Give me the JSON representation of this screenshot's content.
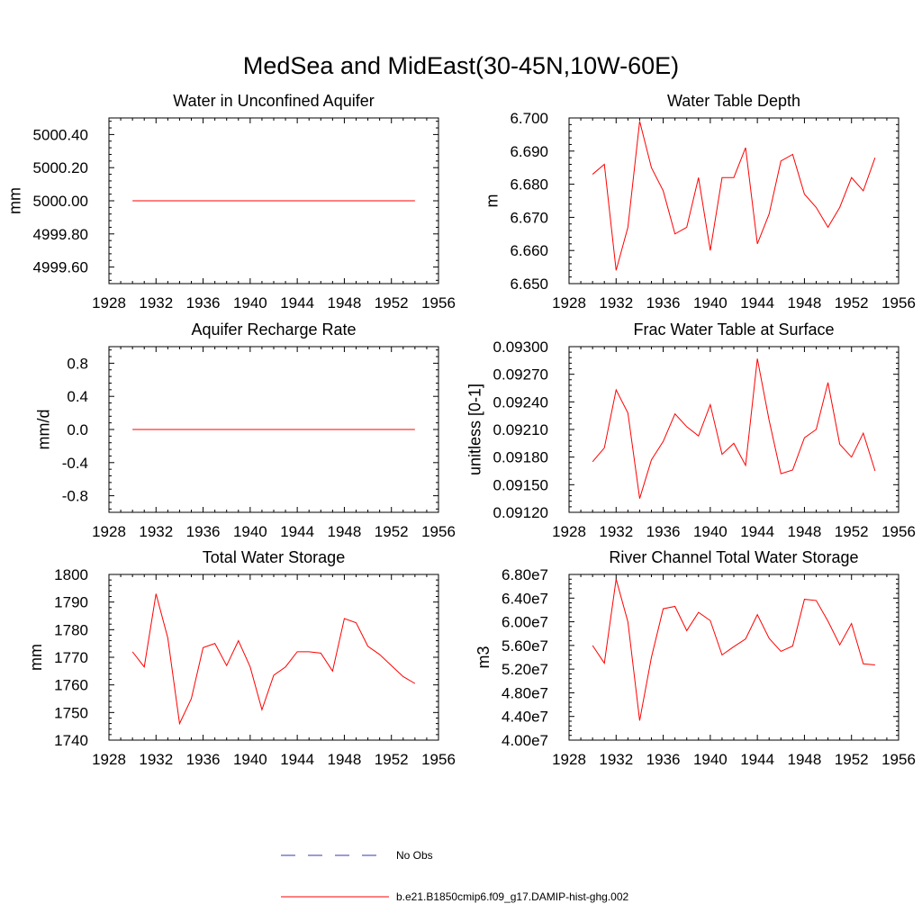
{
  "figure": {
    "title": "MedSea and MidEast(30-45N,10W-60E)"
  },
  "colors": {
    "model_line": "#ff0000",
    "obs_line": "#3a3aa8",
    "axis": "#000000",
    "background": "#ffffff"
  },
  "legend": {
    "position": "bottom-center",
    "entries": [
      {
        "label": "No Obs",
        "color": "#3a3aa8",
        "style": "dashed"
      },
      {
        "label": "b.e21.B1850cmip6.f09_g17.DAMIP-hist-ghg.002",
        "color": "#ff0000",
        "style": "solid"
      }
    ]
  },
  "chart_data": [
    {
      "type": "line",
      "title": "Water in Unconfined Aquifer",
      "xlabel": "",
      "ylabel": "mm",
      "xlim": [
        1928,
        1956
      ],
      "ylim": [
        4999.5,
        5000.5
      ],
      "xticks": [
        1928,
        1932,
        1936,
        1940,
        1944,
        1948,
        1952,
        1956
      ],
      "xtick_labels": [
        "1928",
        "1932",
        "1936",
        "1940",
        "1944",
        "1948",
        "1952",
        "1956"
      ],
      "yticks": [
        4999.6,
        4999.8,
        5000.0,
        5000.2,
        5000.4
      ],
      "ytick_labels": [
        "4999.60",
        "4999.80",
        "5000.00",
        "5000.20",
        "5000.40"
      ],
      "x": [
        1930,
        1931,
        1932,
        1933,
        1934,
        1935,
        1936,
        1937,
        1938,
        1939,
        1940,
        1941,
        1942,
        1943,
        1944,
        1945,
        1946,
        1947,
        1948,
        1949,
        1950,
        1951,
        1952,
        1953,
        1954
      ],
      "series": [
        {
          "values": [
            5000,
            5000,
            5000,
            5000,
            5000,
            5000,
            5000,
            5000,
            5000,
            5000,
            5000,
            5000,
            5000,
            5000,
            5000,
            5000,
            5000,
            5000,
            5000,
            5000,
            5000,
            5000,
            5000,
            5000,
            5000
          ],
          "color": "#ff0000"
        }
      ]
    },
    {
      "type": "line",
      "title": "Water Table Depth",
      "xlabel": "",
      "ylabel": "m",
      "xlim": [
        1928,
        1956
      ],
      "ylim": [
        6.65,
        6.7
      ],
      "xticks": [
        1928,
        1932,
        1936,
        1940,
        1944,
        1948,
        1952,
        1956
      ],
      "xtick_labels": [
        "1928",
        "1932",
        "1936",
        "1940",
        "1944",
        "1948",
        "1952",
        "1956"
      ],
      "yticks": [
        6.65,
        6.66,
        6.67,
        6.68,
        6.69,
        6.7
      ],
      "ytick_labels": [
        "6.650",
        "6.660",
        "6.670",
        "6.680",
        "6.690",
        "6.700"
      ],
      "x": [
        1930,
        1931,
        1932,
        1933,
        1934,
        1935,
        1936,
        1937,
        1938,
        1939,
        1940,
        1941,
        1942,
        1943,
        1944,
        1945,
        1946,
        1947,
        1948,
        1949,
        1950,
        1951,
        1952,
        1953,
        1954
      ],
      "series": [
        {
          "values": [
            6.683,
            6.686,
            6.654,
            6.667,
            6.699,
            6.685,
            6.678,
            6.665,
            6.667,
            6.682,
            6.66,
            6.682,
            6.682,
            6.691,
            6.662,
            6.671,
            6.687,
            6.689,
            6.677,
            6.673,
            6.667,
            6.673,
            6.682,
            6.678,
            6.688
          ],
          "color": "#ff0000"
        }
      ]
    },
    {
      "type": "line",
      "title": "Aquifer Recharge Rate",
      "xlabel": "",
      "ylabel": "mm/d",
      "xlim": [
        1928,
        1956
      ],
      "ylim": [
        -1.0,
        1.0
      ],
      "xticks": [
        1928,
        1932,
        1936,
        1940,
        1944,
        1948,
        1952,
        1956
      ],
      "xtick_labels": [
        "1928",
        "1932",
        "1936",
        "1940",
        "1944",
        "1948",
        "1952",
        "1956"
      ],
      "yticks": [
        -0.8,
        -0.4,
        0.0,
        0.4,
        0.8
      ],
      "ytick_labels": [
        "-0.8",
        "-0.4",
        "0.0",
        "0.4",
        "0.8"
      ],
      "x": [
        1930,
        1931,
        1932,
        1933,
        1934,
        1935,
        1936,
        1937,
        1938,
        1939,
        1940,
        1941,
        1942,
        1943,
        1944,
        1945,
        1946,
        1947,
        1948,
        1949,
        1950,
        1951,
        1952,
        1953,
        1954
      ],
      "series": [
        {
          "values": [
            0,
            0,
            0,
            0,
            0,
            0,
            0,
            0,
            0,
            0,
            0,
            0,
            0,
            0,
            0,
            0,
            0,
            0,
            0,
            0,
            0,
            0,
            0,
            0,
            0
          ],
          "color": "#ff0000"
        }
      ]
    },
    {
      "type": "line",
      "title": "Frac Water Table at Surface",
      "xlabel": "",
      "ylabel": "unitless [0-1]",
      "xlim": [
        1928,
        1956
      ],
      "ylim": [
        0.0912,
        0.093
      ],
      "xticks": [
        1928,
        1932,
        1936,
        1940,
        1944,
        1948,
        1952,
        1956
      ],
      "xtick_labels": [
        "1928",
        "1932",
        "1936",
        "1940",
        "1944",
        "1948",
        "1952",
        "1956"
      ],
      "yticks": [
        0.0912,
        0.0915,
        0.0918,
        0.0921,
        0.0924,
        0.0927,
        0.093
      ],
      "ytick_labels": [
        "0.09120",
        "0.09150",
        "0.09180",
        "0.09210",
        "0.09240",
        "0.09270",
        "0.09300"
      ],
      "x": [
        1930,
        1931,
        1932,
        1933,
        1934,
        1935,
        1936,
        1937,
        1938,
        1939,
        1940,
        1941,
        1942,
        1943,
        1944,
        1945,
        1946,
        1947,
        1948,
        1949,
        1950,
        1951,
        1952,
        1953,
        1954
      ],
      "series": [
        {
          "values": [
            0.09175,
            0.0919,
            0.09253,
            0.09228,
            0.09135,
            0.09177,
            0.09197,
            0.09227,
            0.09213,
            0.09203,
            0.09237,
            0.09183,
            0.09195,
            0.09171,
            0.09287,
            0.0922,
            0.09162,
            0.09166,
            0.09201,
            0.0921,
            0.09261,
            0.09194,
            0.0918,
            0.09206,
            0.09165
          ],
          "color": "#ff0000"
        }
      ]
    },
    {
      "type": "line",
      "title": "Total Water Storage",
      "xlabel": "",
      "ylabel": "mm",
      "xlim": [
        1928,
        1956
      ],
      "ylim": [
        1740,
        1800
      ],
      "xticks": [
        1928,
        1932,
        1936,
        1940,
        1944,
        1948,
        1952,
        1956
      ],
      "xtick_labels": [
        "1928",
        "1932",
        "1936",
        "1940",
        "1944",
        "1948",
        "1952",
        "1956"
      ],
      "yticks": [
        1740,
        1750,
        1760,
        1770,
        1780,
        1790,
        1800
      ],
      "ytick_labels": [
        "1740",
        "1750",
        "1760",
        "1770",
        "1780",
        "1790",
        "1800"
      ],
      "x": [
        1930,
        1931,
        1932,
        1933,
        1934,
        1935,
        1936,
        1937,
        1938,
        1939,
        1940,
        1941,
        1942,
        1943,
        1944,
        1945,
        1946,
        1947,
        1948,
        1949,
        1950,
        1951,
        1952,
        1953,
        1954
      ],
      "series": [
        {
          "values": [
            1772,
            1766.5,
            1793,
            1777,
            1746,
            1755,
            1773.5,
            1775,
            1767,
            1776,
            1766.5,
            1751,
            1763.5,
            1766.5,
            1772,
            1772,
            1771.5,
            1765,
            1784,
            1782.5,
            1774,
            1771,
            1767,
            1763,
            1760.5
          ],
          "color": "#ff0000"
        }
      ]
    },
    {
      "type": "line",
      "title": "River Channel Total Water Storage",
      "xlabel": "",
      "ylabel": "m3",
      "xlim": [
        1928,
        1956
      ],
      "ylim": [
        40000000,
        68000000
      ],
      "xticks": [
        1928,
        1932,
        1936,
        1940,
        1944,
        1948,
        1952,
        1956
      ],
      "xtick_labels": [
        "1928",
        "1932",
        "1936",
        "1940",
        "1944",
        "1948",
        "1952",
        "1956"
      ],
      "yticks": [
        40000000,
        44000000,
        48000000,
        52000000,
        56000000,
        60000000,
        64000000,
        68000000
      ],
      "ytick_labels": [
        "4.00e7",
        "4.40e7",
        "4.80e7",
        "5.20e7",
        "5.60e7",
        "6.00e7",
        "6.40e7",
        "6.80e7"
      ],
      "x": [
        1930,
        1931,
        1932,
        1933,
        1934,
        1935,
        1936,
        1937,
        1938,
        1939,
        1940,
        1941,
        1942,
        1943,
        1944,
        1945,
        1946,
        1947,
        1948,
        1949,
        1950,
        1951,
        1952,
        1953,
        1954
      ],
      "series": [
        {
          "values": [
            56000000,
            53000000,
            67200000,
            60000000,
            43300000,
            54000000,
            62200000,
            62600000,
            58500000,
            61600000,
            60200000,
            54400000,
            55800000,
            57100000,
            61200000,
            57200000,
            55000000,
            55900000,
            63800000,
            63600000,
            60100000,
            56100000,
            59700000,
            52900000,
            52700000
          ],
          "color": "#ff0000"
        }
      ]
    }
  ]
}
